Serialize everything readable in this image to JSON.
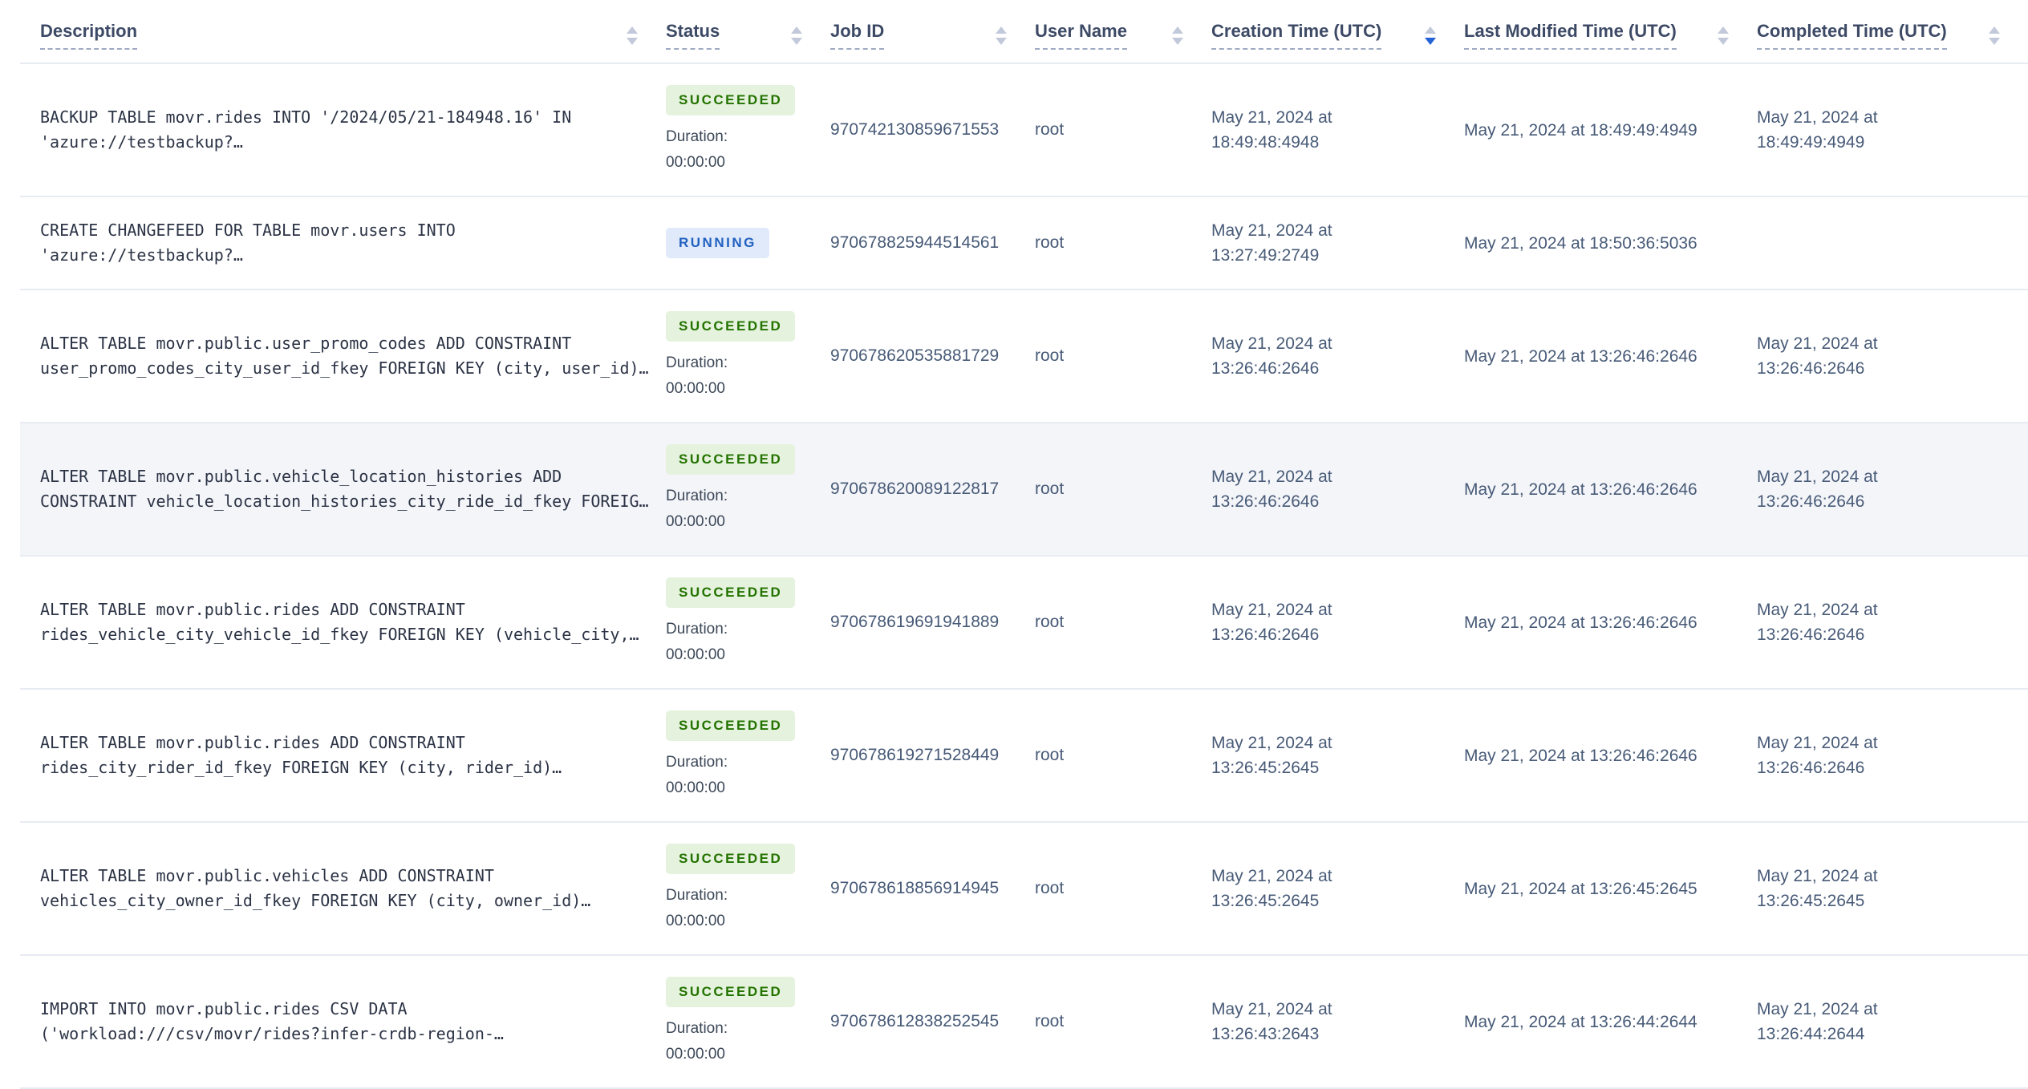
{
  "theme": {
    "header-text": "#3d4a66",
    "body-text": "#475a77",
    "desc-text": "#2b3345",
    "succeeded-bg": "#e5f2dd",
    "succeeded-text": "#237300",
    "running-bg": "#e0eafa",
    "running-text": "#2161c0",
    "row-highlight": "#f4f5f9",
    "row-border": "#e7ebf2",
    "sort-active": "#2463d6",
    "sort-inactive": "#c2c9da",
    "underline": "#9fa9c2"
  },
  "columns": [
    {
      "label": "Description",
      "sort": ""
    },
    {
      "label": "Status",
      "sort": ""
    },
    {
      "label": "Job ID",
      "sort": ""
    },
    {
      "label": "User Name",
      "sort": ""
    },
    {
      "label": "Creation Time (UTC)",
      "sort": "desc"
    },
    {
      "label": "Last Modified Time (UTC)",
      "sort": ""
    },
    {
      "label": "Completed Time (UTC)",
      "sort": ""
    }
  ],
  "rows": [
    {
      "row_class": "",
      "description": "BACKUP TABLE movr.rides INTO '/2024/05/21-184948.16' IN\n'azure://testbackup?…",
      "status": "SUCCEEDED",
      "status_class": "succeeded",
      "duration_label": "Duration:",
      "duration_value": "00:00:00",
      "job_id": "970742130859671553",
      "user_name": "root",
      "creation_time": "May 21, 2024 at\n18:49:48:4948",
      "last_modified_time": "May 21, 2024 at 18:49:49:4949",
      "completed_time": "May 21, 2024 at\n18:49:49:4949"
    },
    {
      "row_class": "",
      "description": "CREATE CHANGEFEED FOR TABLE movr.users INTO\n'azure://testbackup?…",
      "status": "RUNNING",
      "status_class": "running",
      "duration_label": "",
      "duration_value": "",
      "job_id": "970678825944514561",
      "user_name": "root",
      "creation_time": "May 21, 2024 at\n13:27:49:2749",
      "last_modified_time": "May 21, 2024 at 18:50:36:5036",
      "completed_time": ""
    },
    {
      "row_class": "",
      "description": "ALTER TABLE movr.public.user_promo_codes ADD CONSTRAINT\nuser_promo_codes_city_user_id_fkey FOREIGN KEY (city, user_id)…",
      "status": "SUCCEEDED",
      "status_class": "succeeded",
      "duration_label": "Duration:",
      "duration_value": "00:00:00",
      "job_id": "970678620535881729",
      "user_name": "root",
      "creation_time": "May 21, 2024 at\n13:26:46:2646",
      "last_modified_time": "May 21, 2024 at 13:26:46:2646",
      "completed_time": "May 21, 2024 at\n13:26:46:2646"
    },
    {
      "row_class": "highlighted",
      "description": "ALTER TABLE movr.public.vehicle_location_histories ADD\nCONSTRAINT vehicle_location_histories_city_ride_id_fkey FOREIG…",
      "status": "SUCCEEDED",
      "status_class": "succeeded",
      "duration_label": "Duration:",
      "duration_value": "00:00:00",
      "job_id": "970678620089122817",
      "user_name": "root",
      "creation_time": "May 21, 2024 at\n13:26:46:2646",
      "last_modified_time": "May 21, 2024 at 13:26:46:2646",
      "completed_time": "May 21, 2024 at\n13:26:46:2646"
    },
    {
      "row_class": "",
      "description": "ALTER TABLE movr.public.rides ADD CONSTRAINT\nrides_vehicle_city_vehicle_id_fkey FOREIGN KEY (vehicle_city,…",
      "status": "SUCCEEDED",
      "status_class": "succeeded",
      "duration_label": "Duration:",
      "duration_value": "00:00:00",
      "job_id": "970678619691941889",
      "user_name": "root",
      "creation_time": "May 21, 2024 at\n13:26:46:2646",
      "last_modified_time": "May 21, 2024 at 13:26:46:2646",
      "completed_time": "May 21, 2024 at\n13:26:46:2646"
    },
    {
      "row_class": "",
      "description": "ALTER TABLE movr.public.rides ADD CONSTRAINT\nrides_city_rider_id_fkey FOREIGN KEY (city, rider_id)…",
      "status": "SUCCEEDED",
      "status_class": "succeeded",
      "duration_label": "Duration:",
      "duration_value": "00:00:00",
      "job_id": "970678619271528449",
      "user_name": "root",
      "creation_time": "May 21, 2024 at\n13:26:45:2645",
      "last_modified_time": "May 21, 2024 at 13:26:46:2646",
      "completed_time": "May 21, 2024 at\n13:26:46:2646"
    },
    {
      "row_class": "",
      "description": "ALTER TABLE movr.public.vehicles ADD CONSTRAINT\nvehicles_city_owner_id_fkey FOREIGN KEY (city, owner_id)…",
      "status": "SUCCEEDED",
      "status_class": "succeeded",
      "duration_label": "Duration:",
      "duration_value": "00:00:00",
      "job_id": "970678618856914945",
      "user_name": "root",
      "creation_time": "May 21, 2024 at\n13:26:45:2645",
      "last_modified_time": "May 21, 2024 at 13:26:45:2645",
      "completed_time": "May 21, 2024 at\n13:26:45:2645"
    },
    {
      "row_class": "",
      "description": "IMPORT INTO movr.public.rides CSV DATA\n('workload:///csv/movr/rides?infer-crdb-region-…",
      "status": "SUCCEEDED",
      "status_class": "succeeded",
      "duration_label": "Duration:",
      "duration_value": "00:00:00",
      "job_id": "970678612838252545",
      "user_name": "root",
      "creation_time": "May 21, 2024 at\n13:26:43:2643",
      "last_modified_time": "May 21, 2024 at 13:26:44:2644",
      "completed_time": "May 21, 2024 at\n13:26:44:2644"
    }
  ]
}
